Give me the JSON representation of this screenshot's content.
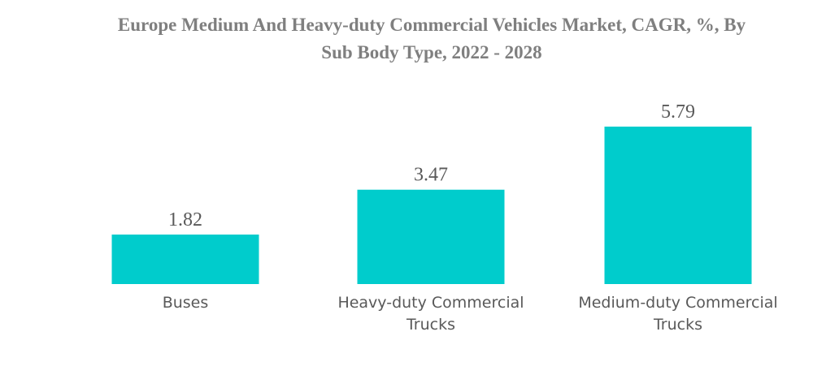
{
  "chart_data": {
    "type": "bar",
    "title_lines": [
      "Europe Medium And Heavy-duty Commercial Vehicles Market, CAGR, %, By",
      "Sub Body Type, 2022 - 2028"
    ],
    "categories": [
      [
        "Buses"
      ],
      [
        "Heavy-duty Commercial",
        "Trucks"
      ],
      [
        "Medium-duty Commercial",
        "Trucks"
      ]
    ],
    "values": [
      1.82,
      3.47,
      5.79
    ],
    "value_labels": [
      "1.82",
      "3.47",
      "5.79"
    ],
    "xlabel": "",
    "ylabel": "",
    "ylim": [
      0,
      5.79
    ],
    "grid": false,
    "legend": "none",
    "bar_color": "#00cccc"
  }
}
